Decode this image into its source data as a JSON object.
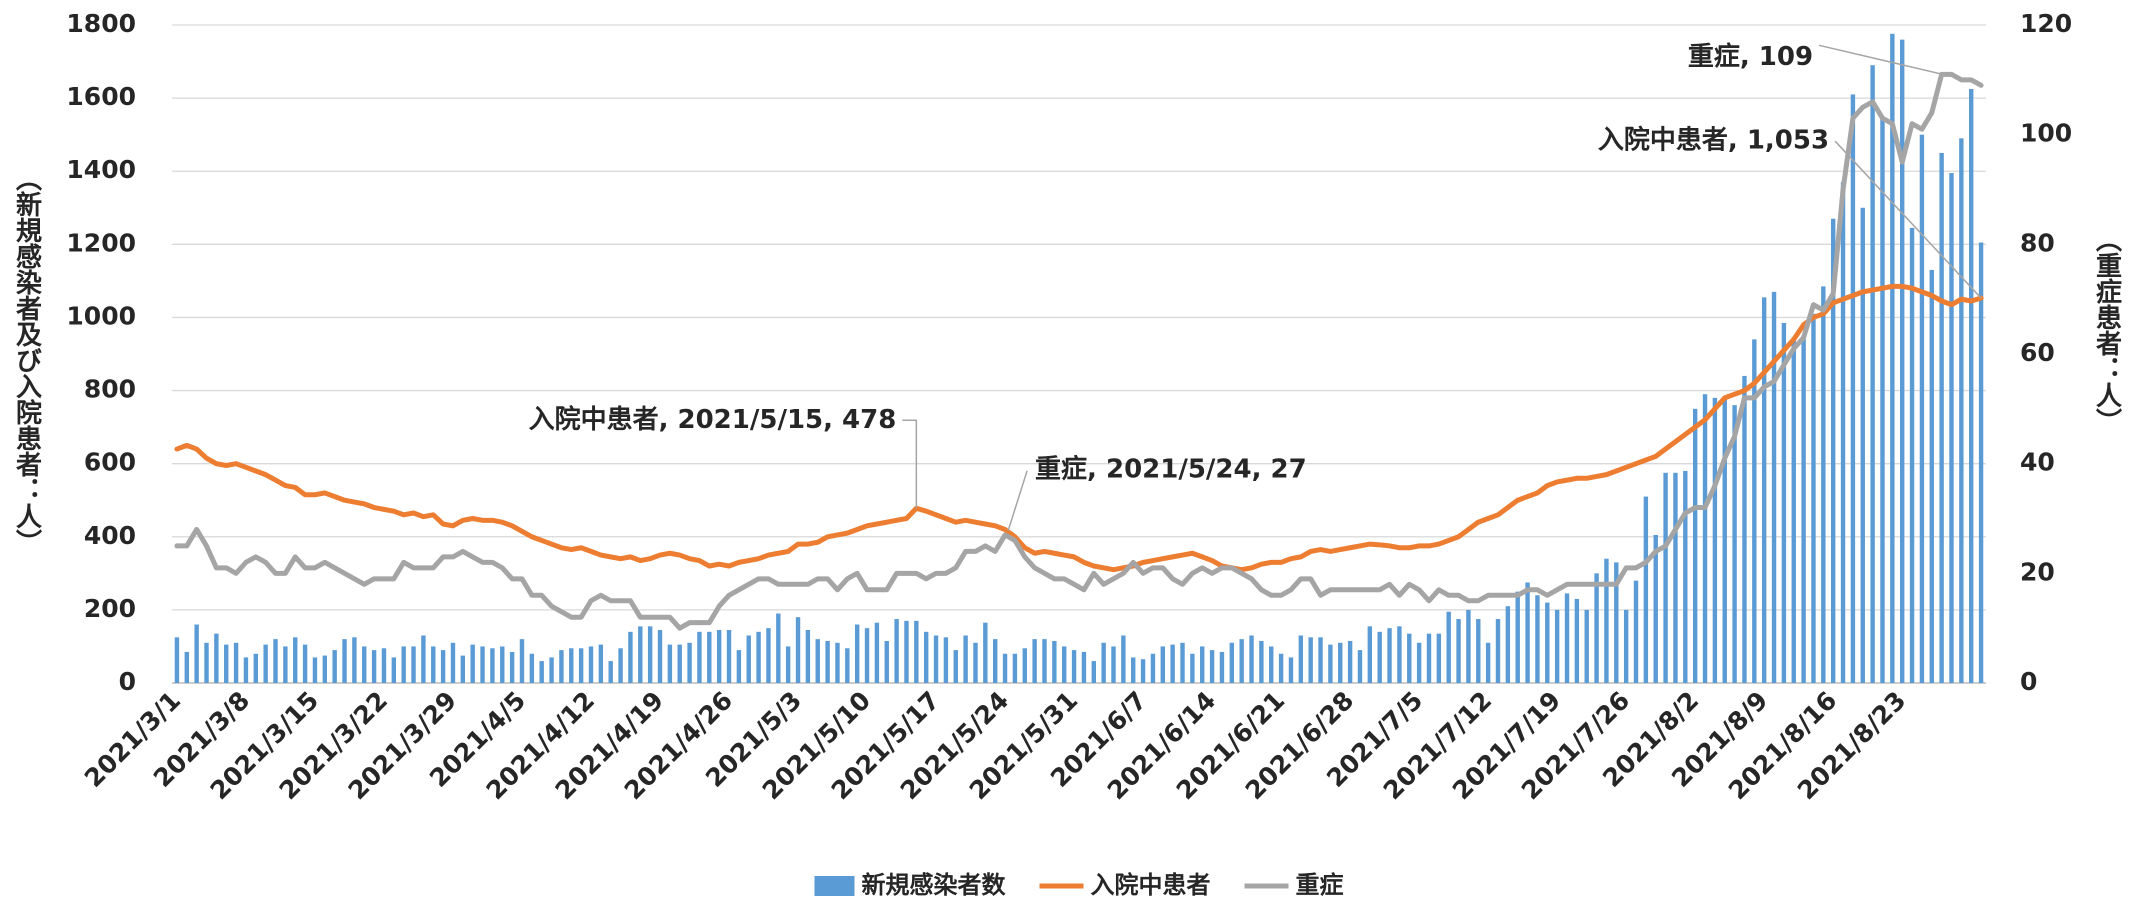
{
  "chart_data": {
    "type": "bar",
    "categories": [
      "2021/3/1",
      null,
      null,
      null,
      null,
      null,
      null,
      "2021/3/8",
      null,
      null,
      null,
      null,
      null,
      null,
      "2021/3/15",
      null,
      null,
      null,
      null,
      null,
      null,
      "2021/3/22",
      null,
      null,
      null,
      null,
      null,
      null,
      "2021/3/29",
      null,
      null,
      null,
      null,
      null,
      null,
      "2021/4/5",
      null,
      null,
      null,
      null,
      null,
      null,
      "2021/4/12",
      null,
      null,
      null,
      null,
      null,
      null,
      "2021/4/19",
      null,
      null,
      null,
      null,
      null,
      null,
      "2021/4/26",
      null,
      null,
      null,
      null,
      null,
      null,
      "2021/5/3",
      null,
      null,
      null,
      null,
      null,
      null,
      "2021/5/10",
      null,
      null,
      null,
      null,
      null,
      null,
      "2021/5/17",
      null,
      null,
      null,
      null,
      null,
      null,
      "2021/5/24",
      null,
      null,
      null,
      null,
      null,
      null,
      "2021/5/31",
      null,
      null,
      null,
      null,
      null,
      null,
      "2021/6/7",
      null,
      null,
      null,
      null,
      null,
      null,
      "2021/6/14",
      null,
      null,
      null,
      null,
      null,
      null,
      "2021/6/21",
      null,
      null,
      null,
      null,
      null,
      null,
      "2021/6/28",
      null,
      null,
      null,
      null,
      null,
      null,
      "2021/7/5",
      null,
      null,
      null,
      null,
      null,
      null,
      "2021/7/12",
      null,
      null,
      null,
      null,
      null,
      null,
      "2021/7/19",
      null,
      null,
      null,
      null,
      null,
      null,
      "2021/7/26",
      null,
      null,
      null,
      null,
      null,
      null,
      "2021/8/2",
      null,
      null,
      null,
      null,
      null,
      null,
      "2021/8/9",
      null,
      null,
      null,
      null,
      null,
      null,
      "2021/8/16",
      null,
      null,
      null,
      null,
      null,
      null,
      "2021/8/23",
      null,
      null,
      null,
      null,
      null,
      null,
      null,
      null
    ],
    "series": [
      {
        "name": "新規感染者数",
        "type": "bar",
        "color": "#5b9bd5",
        "values": [
          125,
          85,
          160,
          110,
          135,
          105,
          110,
          70,
          80,
          105,
          120,
          100,
          125,
          105,
          70,
          75,
          90,
          120,
          125,
          100,
          90,
          95,
          70,
          100,
          100,
          130,
          100,
          90,
          110,
          75,
          105,
          100,
          95,
          100,
          85,
          120,
          80,
          60,
          70,
          90,
          95,
          95,
          100,
          105,
          60,
          95,
          140,
          155,
          155,
          145,
          105,
          105,
          110,
          140,
          140,
          145,
          145,
          90,
          130,
          140,
          150,
          190,
          100,
          180,
          145,
          120,
          115,
          110,
          95,
          160,
          150,
          165,
          115,
          175,
          170,
          170,
          140,
          130,
          125,
          90,
          130,
          110,
          165,
          120,
          80,
          80,
          95,
          120,
          120,
          115,
          100,
          90,
          85,
          60,
          110,
          100,
          130,
          70,
          65,
          80,
          100,
          105,
          110,
          80,
          100,
          90,
          85,
          110,
          120,
          130,
          115,
          100,
          80,
          70,
          130,
          125,
          125,
          105,
          110,
          115,
          90,
          155,
          140,
          150,
          155,
          135,
          110,
          135,
          135,
          195,
          175,
          200,
          175,
          110,
          175,
          210,
          250,
          275,
          240,
          220,
          200,
          245,
          230,
          200,
          300,
          340,
          330,
          200,
          280,
          510,
          405,
          575,
          575,
          580,
          750,
          790,
          780,
          780,
          760,
          840,
          940,
          1055,
          1070,
          985,
          945,
          950,
          1010,
          1085,
          1270,
          1370,
          1610,
          1300,
          1690,
          1550,
          1776,
          1760,
          1245,
          1500,
          1130,
          1450,
          1395,
          1490,
          1625,
          1205
        ]
      },
      {
        "name": "入院中患者",
        "type": "line",
        "color": "#ed7d31",
        "values": [
          640,
          650,
          640,
          615,
          600,
          595,
          600,
          590,
          580,
          570,
          555,
          540,
          535,
          515,
          515,
          520,
          510,
          500,
          495,
          490,
          480,
          475,
          470,
          460,
          465,
          455,
          460,
          435,
          430,
          445,
          450,
          445,
          445,
          440,
          430,
          415,
          400,
          390,
          380,
          370,
          365,
          370,
          360,
          350,
          345,
          340,
          345,
          335,
          340,
          350,
          355,
          350,
          340,
          335,
          320,
          325,
          320,
          330,
          335,
          340,
          350,
          355,
          360,
          380,
          380,
          385,
          400,
          405,
          410,
          420,
          430,
          435,
          440,
          445,
          450,
          478,
          470,
          460,
          450,
          440,
          445,
          440,
          435,
          430,
          420,
          400,
          370,
          355,
          360,
          355,
          350,
          345,
          330,
          320,
          315,
          310,
          315,
          320,
          330,
          335,
          340,
          345,
          350,
          355,
          345,
          335,
          320,
          315,
          310,
          315,
          325,
          330,
          330,
          340,
          345,
          360,
          365,
          360,
          365,
          370,
          375,
          380,
          378,
          375,
          370,
          370,
          375,
          375,
          380,
          390,
          400,
          420,
          440,
          450,
          460,
          480,
          500,
          510,
          520,
          540,
          550,
          555,
          560,
          560,
          565,
          570,
          580,
          590,
          600,
          610,
          620,
          640,
          660,
          680,
          700,
          720,
          750,
          780,
          790,
          800,
          820,
          850,
          880,
          910,
          940,
          980,
          1000,
          1010,
          1040,
          1050,
          1060,
          1070,
          1075,
          1080,
          1085,
          1085,
          1080,
          1070,
          1060,
          1045,
          1035,
          1050,
          1045,
          1053
        ],
        "value_labels": [
          null,
          null,
          null,
          null,
          null,
          null,
          null,
          null,
          null,
          null,
          null,
          null,
          null,
          null,
          null,
          null,
          null,
          null,
          null,
          null,
          null,
          null,
          null,
          null,
          null,
          null,
          null,
          null,
          null,
          null,
          null,
          null,
          null,
          null,
          null,
          null,
          null,
          null,
          null,
          null,
          null,
          null,
          null,
          null,
          null,
          null,
          null,
          null,
          null,
          null,
          null,
          null,
          null,
          null,
          null,
          null,
          null,
          null,
          null,
          null,
          null,
          null,
          null,
          null,
          null,
          null,
          null,
          null,
          null,
          null,
          null,
          null,
          null,
          null,
          null,
          "入院中患者, 2021/5/15, 478",
          null,
          null,
          null,
          null,
          null,
          null,
          null,
          null,
          null,
          null,
          null,
          null,
          null,
          null,
          null,
          null,
          null,
          null,
          null,
          null,
          null,
          null,
          null,
          null,
          null,
          null,
          null,
          null,
          null,
          null,
          null,
          null,
          null,
          null,
          null,
          null,
          null,
          null,
          null,
          null,
          null,
          null,
          null,
          null,
          null,
          null,
          null,
          null,
          null,
          null,
          null,
          null,
          null,
          null,
          null,
          null,
          null,
          null,
          null,
          null,
          null,
          null,
          null,
          null,
          null,
          null,
          null,
          null,
          null,
          null,
          null,
          null,
          null,
          null,
          null,
          null,
          null,
          null,
          null,
          null,
          null,
          null,
          null,
          null,
          null,
          null,
          null,
          null,
          null,
          null,
          null,
          null,
          null,
          null,
          null,
          null,
          null,
          null,
          null,
          null,
          null,
          null,
          null,
          null,
          null,
          null,
          null,
          "入院中患者, 1,053"
        ]
      },
      {
        "name": "重症",
        "type": "line",
        "axis": "y2",
        "color": "#a5a5a5",
        "values": [
          25,
          25,
          28,
          25,
          21,
          21,
          20,
          22,
          23,
          22,
          20,
          20,
          23,
          21,
          21,
          22,
          21,
          20,
          19,
          18,
          19,
          19,
          19,
          22,
          21,
          21,
          21,
          23,
          23,
          24,
          23,
          22,
          22,
          21,
          19,
          19,
          16,
          16,
          14,
          13,
          12,
          12,
          15,
          16,
          15,
          15,
          15,
          12,
          12,
          12,
          12,
          10,
          11,
          11,
          11,
          14,
          16,
          17,
          18,
          19,
          19,
          18,
          18,
          18,
          18,
          19,
          19,
          17,
          19,
          20,
          17,
          17,
          17,
          20,
          20,
          20,
          19,
          20,
          20,
          21,
          24,
          24,
          25,
          24,
          27,
          26,
          23,
          21,
          20,
          19,
          19,
          18,
          17,
          20,
          18,
          19,
          20,
          22,
          20,
          21,
          21,
          19,
          18,
          20,
          21,
          20,
          21,
          21,
          20,
          19,
          17,
          16,
          16,
          17,
          19,
          19,
          16,
          17,
          17,
          17,
          17,
          17,
          17,
          18,
          16,
          18,
          17,
          15,
          17,
          16,
          16,
          15,
          15,
          16,
          16,
          16,
          16,
          17,
          17,
          16,
          17,
          18,
          18,
          18,
          18,
          18,
          18,
          21,
          21,
          22,
          24,
          25,
          28,
          31,
          32,
          32,
          36,
          41,
          45,
          52,
          52,
          54,
          55,
          58,
          61,
          63,
          69,
          68,
          71,
          90,
          103,
          105,
          106,
          103,
          102,
          95,
          102,
          101,
          104,
          111,
          111,
          110,
          110,
          109
        ],
        "value_labels": [
          null,
          null,
          null,
          null,
          null,
          null,
          null,
          null,
          null,
          null,
          null,
          null,
          null,
          null,
          null,
          null,
          null,
          null,
          null,
          null,
          null,
          null,
          null,
          null,
          null,
          null,
          null,
          null,
          null,
          null,
          null,
          null,
          null,
          null,
          null,
          null,
          null,
          null,
          null,
          null,
          null,
          null,
          null,
          null,
          null,
          null,
          null,
          null,
          null,
          null,
          null,
          null,
          null,
          null,
          null,
          null,
          null,
          null,
          null,
          null,
          null,
          null,
          null,
          null,
          null,
          null,
          null,
          null,
          null,
          null,
          null,
          null,
          null,
          null,
          null,
          null,
          null,
          null,
          null,
          null,
          null,
          null,
          null,
          null,
          "重症, 2021/5/24, 27",
          null,
          null,
          null,
          null,
          null,
          null,
          null,
          null,
          null,
          null,
          null,
          null,
          null,
          null,
          null,
          null,
          null,
          null,
          null,
          null,
          null,
          null,
          null,
          null,
          null,
          null,
          null,
          null,
          null,
          null,
          null,
          null,
          null,
          null,
          null,
          null,
          null,
          null,
          null,
          null,
          null,
          null,
          null,
          null,
          null,
          null,
          null,
          null,
          null,
          null,
          null,
          null,
          null,
          null,
          null,
          null,
          null,
          null,
          null,
          null,
          null,
          null,
          null,
          null,
          null,
          null,
          null,
          null,
          null,
          null,
          null,
          null,
          null,
          null,
          null,
          null,
          null,
          null,
          null,
          null,
          null,
          null,
          null,
          null,
          null,
          null,
          null,
          null,
          null,
          null,
          null,
          null,
          null,
          null,
          null,
          null,
          null,
          null,
          "重症, 109"
        ]
      }
    ],
    "ylabel": "（新規感染者及び入院患者：人）",
    "y2label": "（重症患者：人）",
    "ylim": [
      0,
      1800
    ],
    "yticks": [
      0,
      200,
      400,
      600,
      800,
      1000,
      1200,
      1400,
      1600,
      1800
    ],
    "y2lim": [
      0,
      120
    ],
    "y2ticks": [
      0,
      20,
      40,
      60,
      80,
      100,
      120
    ],
    "grid": true,
    "legend": "bottom"
  }
}
